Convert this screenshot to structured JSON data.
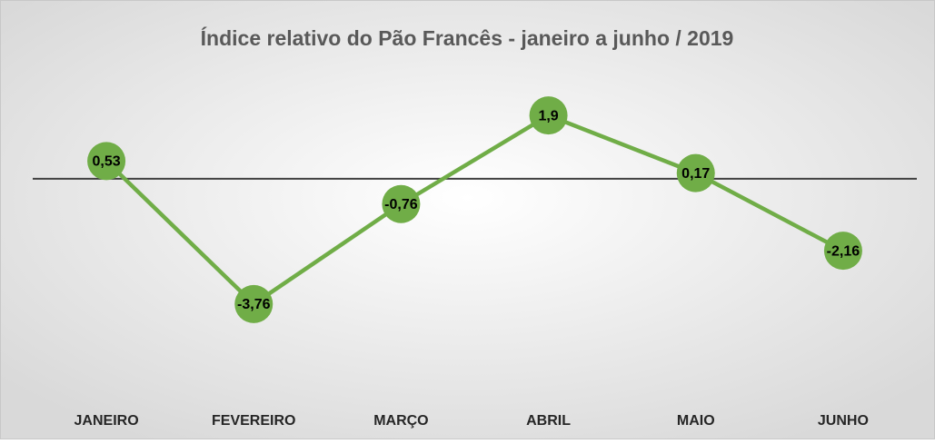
{
  "chart_data": {
    "type": "line",
    "title": "Índice relativo do Pão Francês - janeiro a junho / 2019",
    "categories": [
      "JANEIRO",
      "FEVEREIRO",
      "MARÇO",
      "ABRIL",
      "MAIO",
      "JUNHO"
    ],
    "series": [
      {
        "name": "Índice",
        "color": "#70ad47",
        "values": [
          0.53,
          -3.76,
          -0.76,
          1.9,
          0.17,
          -2.16
        ],
        "value_labels": [
          "0,53",
          "-3,76",
          "-0,76",
          "1,9",
          "0,17",
          "-2,16"
        ]
      }
    ],
    "ylim": [
      -6.5,
      4
    ]
  }
}
